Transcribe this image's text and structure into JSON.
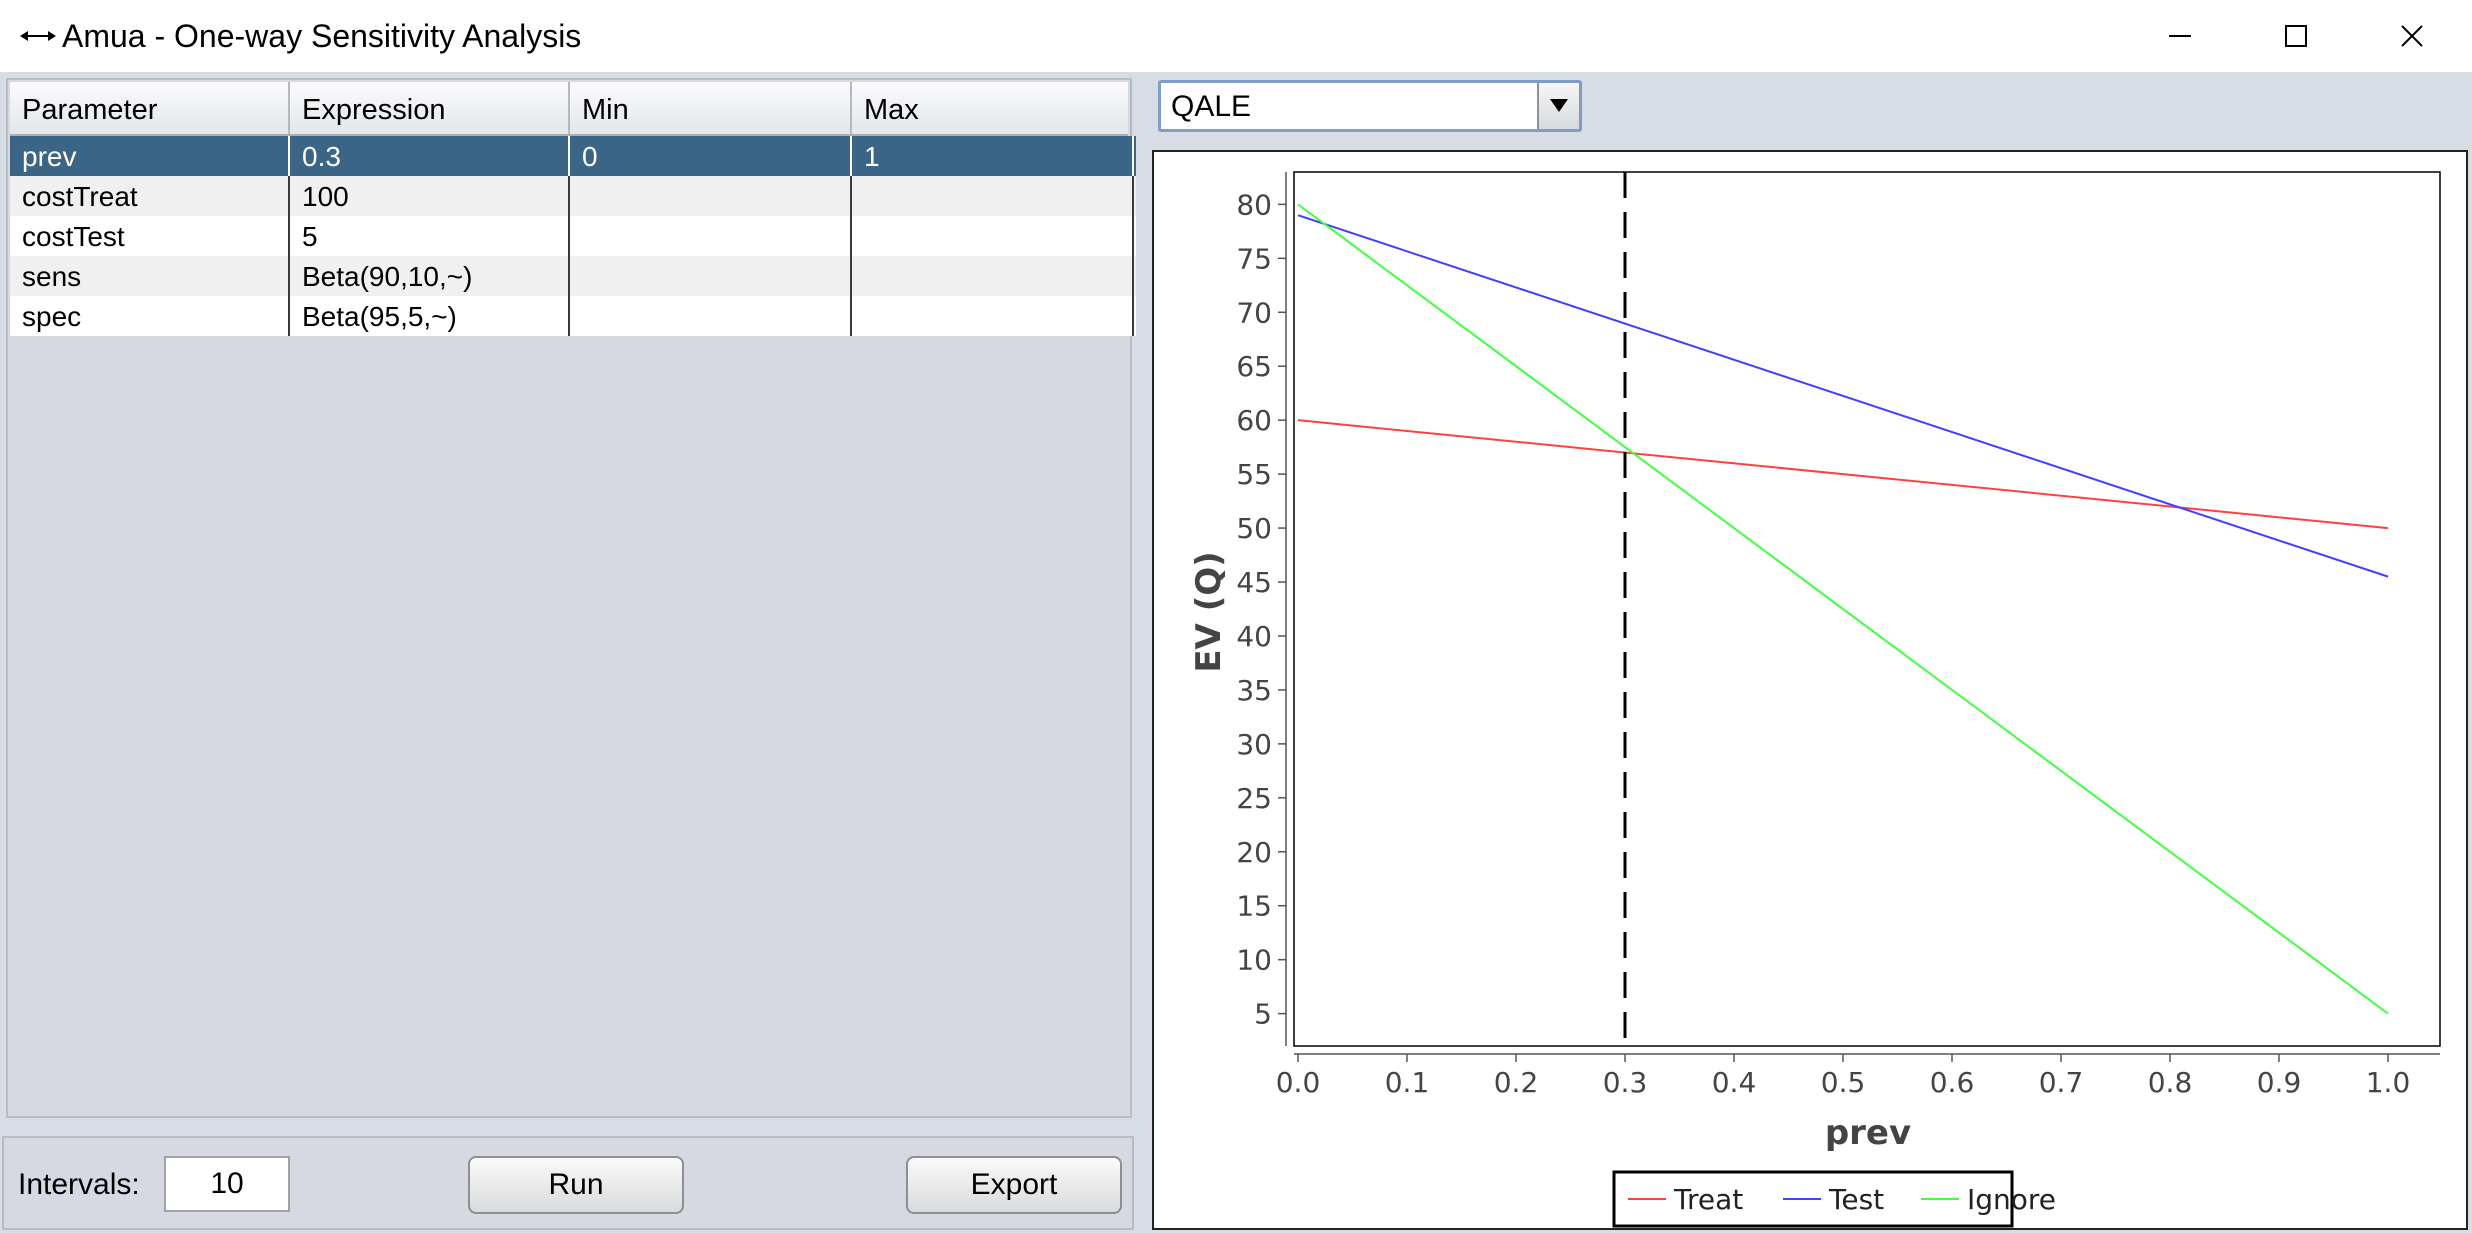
{
  "window": {
    "title": "Amua - One-way Sensitivity Analysis",
    "app_icon": "double-arrow-icon",
    "controls": [
      "minimize-icon",
      "maximize-icon",
      "close-icon"
    ]
  },
  "table": {
    "headers": [
      "Parameter",
      "Expression",
      "Min",
      "Max"
    ],
    "rows": [
      {
        "parameter": "prev",
        "expression": "0.3",
        "min": "0",
        "max": "1",
        "selected": true
      },
      {
        "parameter": "costTreat",
        "expression": "100",
        "min": "",
        "max": ""
      },
      {
        "parameter": "costTest",
        "expression": "5",
        "min": "",
        "max": ""
      },
      {
        "parameter": "sens",
        "expression": "Beta(90,10,~)",
        "min": "",
        "max": ""
      },
      {
        "parameter": "spec",
        "expression": "Beta(95,5,~)",
        "min": "",
        "max": ""
      }
    ]
  },
  "controls": {
    "intervals_label": "Intervals:",
    "intervals_value": "10",
    "run_label": "Run",
    "export_label": "Export"
  },
  "outcome_select": {
    "value": "QALE"
  },
  "chart_data": {
    "type": "line",
    "xlabel": "prev",
    "ylabel": "EV (Q)",
    "xlim": [
      0,
      1.0
    ],
    "ylim": [
      2,
      83
    ],
    "xticks": [
      "0.0",
      "0.1",
      "0.2",
      "0.3",
      "0.4",
      "0.5",
      "0.6",
      "0.7",
      "0.8",
      "0.9",
      "1.0"
    ],
    "yticks": [
      "5",
      "10",
      "15",
      "20",
      "25",
      "30",
      "35",
      "40",
      "45",
      "50",
      "55",
      "60",
      "65",
      "70",
      "75",
      "80"
    ],
    "reference_line_x": 0.3,
    "legend_position": "bottom-center",
    "series": [
      {
        "name": "Treat",
        "color": "#ff4040",
        "x": [
          0,
          1
        ],
        "y": [
          60,
          50
        ]
      },
      {
        "name": "Test",
        "color": "#4040ff",
        "x": [
          0,
          1
        ],
        "y": [
          79,
          45.5
        ]
      },
      {
        "name": "Ignore",
        "color": "#40ff40",
        "x": [
          0,
          1
        ],
        "y": [
          80,
          5
        ]
      }
    ]
  }
}
